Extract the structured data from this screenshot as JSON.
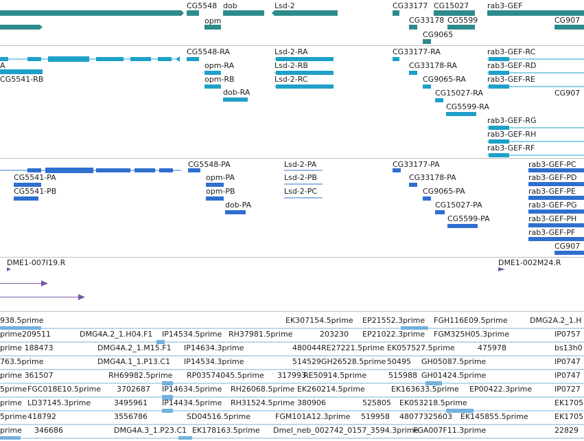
{
  "colors": {
    "genes": "#2e8b8b",
    "transcripts": "#1ea0c9",
    "proteins": "#2f6fcf",
    "clones": "#7a5aa8",
    "ests": "#74b1dc",
    "separator": "#bdbdbd"
  },
  "tracks": {
    "genes": {
      "labels": [
        "CG5548",
        "dob",
        "Lsd-2",
        "CG33177",
        "CG15027",
        "rab3-GEF",
        "opm",
        "CG33178",
        "CG5599",
        "CG9065",
        "CG907"
      ]
    },
    "transcripts": {
      "labels": [
        "A",
        "CG5541-RB",
        "CG5548-RA",
        "opm-RA",
        "opm-RB",
        "dob-RA",
        "Lsd-2-RA",
        "Lsd-2-RB",
        "Lsd-2-RC",
        "CG33177-RA",
        "CG33178-RA",
        "CG9065-RA",
        "CG15027-RA",
        "CG5599-RA",
        "rab3-GEF-RC",
        "rab3-GEF-RD",
        "rab3-GEF-RE",
        "CG907",
        "rab3-GEF-RG",
        "rab3-GEF-RH",
        "rab3-GEF-RF"
      ]
    },
    "proteins": {
      "labels": [
        "CG5541-PA",
        "CG5541-PB",
        "CG5548-PA",
        "opm-PA",
        "opm-PB",
        "dob-PA",
        "Lsd-2-PA",
        "Lsd-2-PB",
        "Lsd-2-PC",
        "CG33177-PA",
        "CG33178-PA",
        "CG9065-PA",
        "CG15027-PA",
        "CG5599-PA",
        "rab3-GEF-PC",
        "rab3-GEF-PD",
        "rab3-GEF-PE",
        "rab3-GEF-PG",
        "rab3-GEF-PH",
        "rab3-GEF-PF",
        "CG907"
      ]
    },
    "clones": {
      "labels": [
        "DME1-007I19.R",
        "DME1-002M24.R"
      ]
    },
    "ests": {
      "labels": [
        "938.5prime",
        "EK307154.5prime",
        "EP21552.3prime",
        "FGH116E09.5prime",
        "DMG2A.2_1.H",
        "prime209511",
        "DMG4A.2_1.H04.F1",
        "IP14534.5prime",
        "RH37981.5prime",
        "203230",
        "EP21022.3prime",
        "FGM325H05.3prime",
        "IP0757",
        "prime 188473",
        "DMG4A.2_1.M15.F1",
        "IP14634.3prime",
        "480044",
        "RE27221.5prime",
        "EK057527.5prime",
        "475978",
        "bs13h0",
        "763.5prime",
        "DMG4A.1_1.P13.C1",
        "IP14534.3prime",
        "514529",
        "GH26528.5prime",
        "50495",
        "GH05087.5prime",
        "IP0747",
        "prime 361507",
        "RH69982.5prime",
        "RP03574045.5prime",
        "317993",
        "RE50914.5prime",
        "515988",
        "GH01424.5prime",
        "IP0747",
        "5prime",
        "FGC018E10.5prime",
        "3702687",
        "IP14634.5prime",
        "RH26068.5prime",
        "EK260214.5prime",
        "EK163633.5prime",
        "EP00422.3prime",
        "IP0727",
        "prime",
        "LD37145.3prime",
        "3495961",
        "IP14434.5prime",
        "RH31524.5prime",
        "380906",
        "525805",
        "EK053218.5prime",
        "EK1705",
        "5prime",
        "418792",
        "3556786",
        "SD04516.5prime",
        "FGM101A12.3prime",
        "519958",
        "48077325603",
        "EK145855.5prime",
        "EK1705",
        "prime",
        "346686",
        "DMG4A.3_1.P23.C1",
        "EK178163.5prime",
        "Dmel_neb_002742_0157_3594.3prime",
        "FGA007F11.3prime",
        "22829"
      ]
    }
  }
}
